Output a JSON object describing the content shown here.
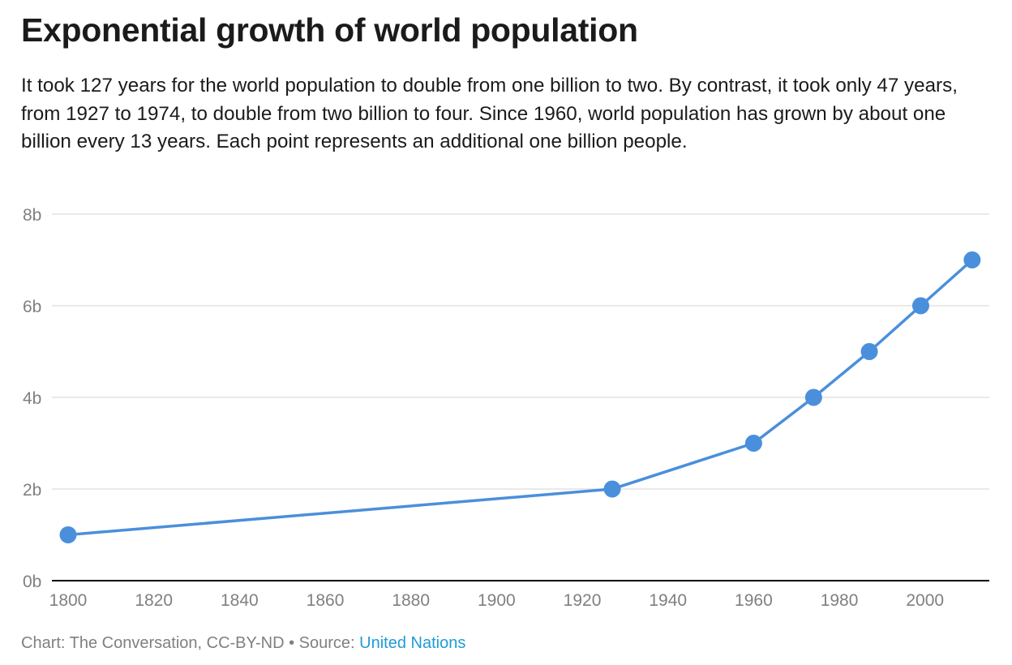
{
  "header": {
    "title": "Exponential growth of world population",
    "subtitle": "It took 127 years for the world population to double from one billion to two. By contrast, it took only 47 years, from 1927 to 1974, to double from two billion to four. Since 1960, world population has grown by about one billion every 13 years. Each point represents an additional one billion people."
  },
  "chart_data": {
    "type": "line",
    "x": [
      1800,
      1927,
      1960,
      1974,
      1987,
      1999,
      2011
    ],
    "series": [
      {
        "values": [
          1,
          2,
          3,
          4,
          5,
          6,
          7
        ]
      }
    ],
    "xlim": [
      1800,
      2015
    ],
    "ylim": [
      0,
      8
    ],
    "x_ticks": [
      1800,
      1820,
      1840,
      1860,
      1880,
      1900,
      1920,
      1940,
      1960,
      1980,
      2000
    ],
    "y_ticks": [
      0,
      2,
      4,
      6,
      8
    ],
    "y_tick_labels": [
      "0b",
      "2b",
      "4b",
      "6b",
      "8b"
    ],
    "grid": "horizontal",
    "line_color": "#4a8fdc",
    "gridline_color": "#dcdcdc",
    "axis_color": "#000000",
    "markers": "circle"
  },
  "footer": {
    "credit": "Chart: The Conversation, CC-BY-ND • Source: ",
    "source_link": "United Nations",
    "link_color": "#1f9bd7"
  }
}
